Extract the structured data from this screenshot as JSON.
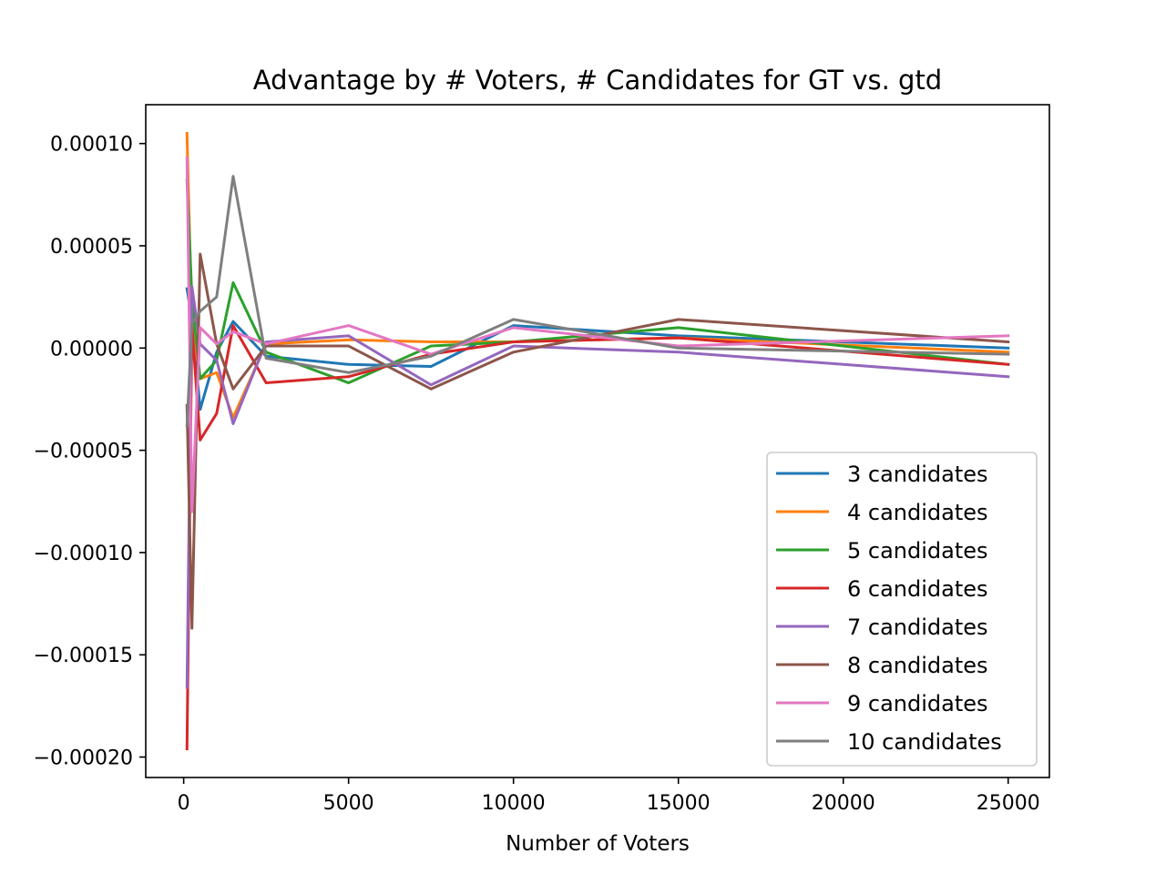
{
  "chart_data": {
    "type": "line",
    "title": "Advantage by # Voters, # Candidates for GT vs. gtd",
    "xlabel": "Number of Voters",
    "ylabel": "",
    "xlim": [
      -1150,
      26250
    ],
    "ylim": [
      -0.00021,
      0.000119
    ],
    "xticks": [
      0,
      5000,
      10000,
      15000,
      20000,
      25000
    ],
    "xtick_labels": [
      "0",
      "5000",
      "10000",
      "15000",
      "20000",
      "25000"
    ],
    "yticks": [
      0.0001,
      5e-05,
      0.0,
      -5e-05,
      -0.0001,
      -0.00015,
      -0.0002
    ],
    "ytick_labels": [
      "0.00010",
      "0.00005",
      "0.00000",
      "−0.00005",
      "−0.00010",
      "−0.00015",
      "−0.00020"
    ],
    "grid": false,
    "legend_position": "lower-right",
    "x": [
      100,
      250,
      500,
      1000,
      1500,
      2500,
      5000,
      7500,
      10000,
      15000,
      25000
    ],
    "series": [
      {
        "name": "3 candidates",
        "color": "#1f77b4",
        "values": [
          2.9e-05,
          1.4e-05,
          -3e-05,
          -2e-06,
          1.3e-05,
          -4e-06,
          -8e-06,
          -9e-06,
          1.1e-05,
          6e-06,
          0.0
        ]
      },
      {
        "name": "4 candidates",
        "color": "#ff7f0e",
        "values": [
          0.000105,
          1.1e-05,
          -1.5e-05,
          -1.2e-05,
          -3.4e-05,
          2e-06,
          4e-06,
          3e-06,
          3e-06,
          5e-06,
          -2e-06
        ]
      },
      {
        "name": "5 candidates",
        "color": "#2ca02c",
        "values": [
          8.2e-05,
          2.5e-05,
          -1.5e-05,
          -6e-06,
          3.2e-05,
          -2e-06,
          -1.7e-05,
          1e-06,
          3e-06,
          1e-05,
          -8e-06
        ]
      },
      {
        "name": "6 candidates",
        "color": "#d62728",
        "values": [
          -0.000196,
          1.1e-05,
          -4.5e-05,
          -3.2e-05,
          1.1e-05,
          -1.7e-05,
          -1.4e-05,
          -3e-06,
          3e-06,
          5e-06,
          -8e-06
        ]
      },
      {
        "name": "7 candidates",
        "color": "#9467bd",
        "values": [
          -0.000166,
          3e-05,
          2e-06,
          -6e-06,
          -3.7e-05,
          3e-06,
          6e-06,
          -1.8e-05,
          1e-06,
          -2e-06,
          -1.4e-05
        ]
      },
      {
        "name": "8 candidates",
        "color": "#8c564b",
        "values": [
          -2.8e-05,
          -0.000137,
          4.6e-05,
          2e-06,
          -2e-05,
          1e-06,
          1e-06,
          -2e-05,
          -2e-06,
          1.4e-05,
          3e-06
        ]
      },
      {
        "name": "9 candidates",
        "color": "#e377c2",
        "values": [
          9.3e-05,
          -8e-05,
          1e-05,
          2e-06,
          8e-06,
          2e-06,
          1.1e-05,
          -3e-06,
          1e-05,
          1e-06,
          6e-06
        ]
      },
      {
        "name": "10 candidates",
        "color": "#7f7f7f",
        "values": [
          -3.8e-05,
          1.2e-05,
          1.8e-05,
          2.5e-05,
          8.4e-05,
          -5e-06,
          -1.2e-05,
          -4e-06,
          1.4e-05,
          0.0,
          -3e-06
        ]
      }
    ]
  }
}
